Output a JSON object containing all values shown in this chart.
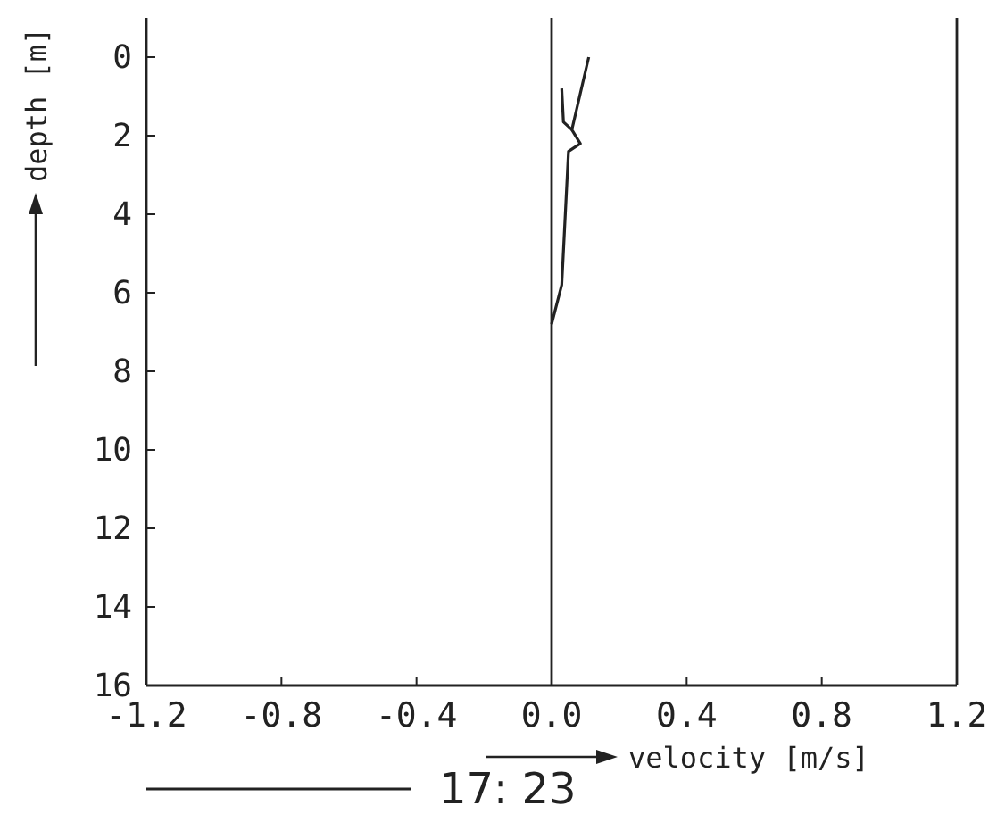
{
  "chart_data": {
    "type": "line",
    "xlabel": "velocity [m/s]",
    "ylabel": "depth [m]",
    "xlim": [
      -1.2,
      1.2
    ],
    "ylim": [
      16,
      -1
    ],
    "xticks": [
      {
        "value": -1.2,
        "label": "-1.2"
      },
      {
        "value": -0.8,
        "label": "-0.8"
      },
      {
        "value": -0.4,
        "label": "-0.4"
      },
      {
        "value": 0,
        "label": "0.0"
      },
      {
        "value": 0.4,
        "label": "0.4"
      },
      {
        "value": 0.8,
        "label": "0.8"
      },
      {
        "value": 1.2,
        "label": "1.2"
      }
    ],
    "yticks": [
      0,
      2,
      4,
      6,
      8,
      10,
      12,
      14,
      16
    ],
    "series": [
      {
        "name": "17: 23",
        "color": "#222222",
        "x": [
          0.11,
          0.06,
          0.085,
          0.05,
          0.03,
          0.0
        ],
        "values": [
          0,
          1.85,
          2.2,
          2.4,
          5.8,
          6.8
        ]
      },
      {
        "color": "#222222",
        "x": [
          0.03,
          0.035,
          0.06
        ],
        "values": [
          0.8,
          1.65,
          1.85
        ]
      }
    ],
    "ref_lines": [
      {
        "axis": "x",
        "value": 0,
        "color": "#222222"
      }
    ],
    "legend": "bottom",
    "grid": false
  }
}
